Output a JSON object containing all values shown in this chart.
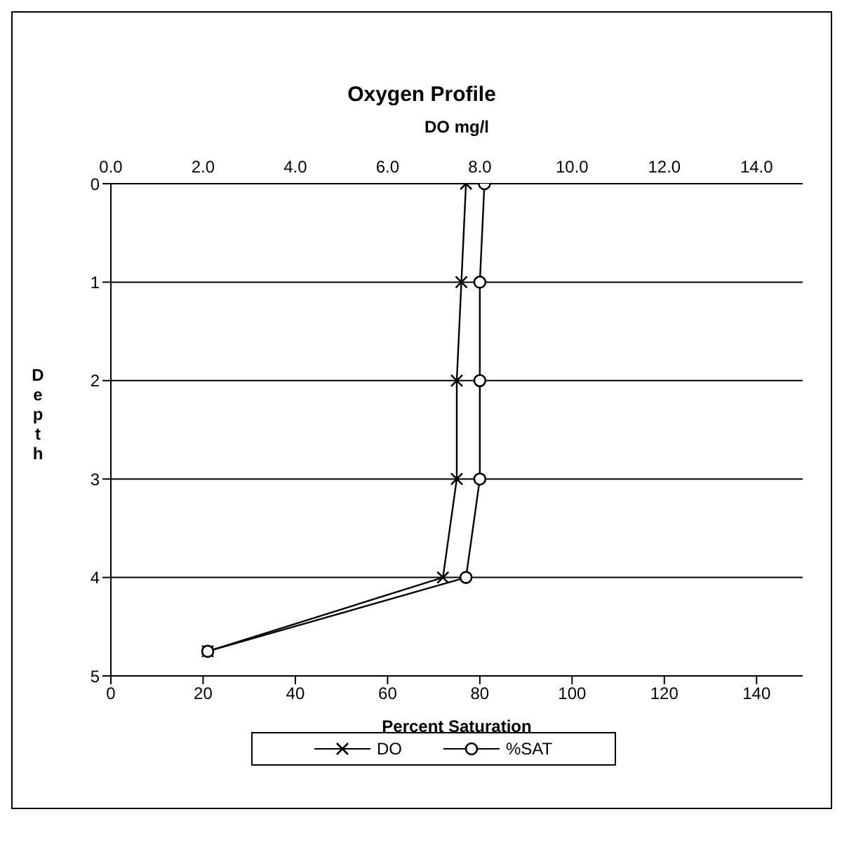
{
  "chart_data": {
    "type": "line",
    "title": "Oxygen Profile",
    "x2label": "DO mg/l",
    "xlabel": "Percent Saturation",
    "ylabel": "Depth",
    "orientation": "horizontal",
    "x": [
      0,
      1,
      2,
      3,
      4,
      4.75
    ],
    "series": [
      {
        "name": "DO",
        "color": "#000000",
        "values": [
          7.7,
          7.6,
          7.5,
          7.5,
          7.2,
          2.1
        ],
        "axis": "x2",
        "marker": "cross"
      },
      {
        "name": "%SAT",
        "color": "#000000",
        "values": [
          81,
          80,
          80,
          80,
          77,
          21
        ],
        "marker": "circle"
      }
    ],
    "xlim": [
      0,
      150
    ],
    "xticks": [
      0,
      20,
      40,
      60,
      80,
      100,
      120,
      140
    ],
    "x2lim": [
      0,
      15
    ],
    "x2ticks": [
      {
        "value": 0,
        "label": "0.0"
      },
      {
        "value": 2,
        "label": "2.0"
      },
      {
        "value": 4,
        "label": "4.0"
      },
      {
        "value": 6,
        "label": "6.0"
      },
      {
        "value": 8,
        "label": "8.0"
      },
      {
        "value": 10,
        "label": "10.0"
      },
      {
        "value": 12,
        "label": "12.0"
      },
      {
        "value": 14,
        "label": "14.0"
      }
    ],
    "ylim": [
      5,
      0
    ],
    "yticks": [
      0,
      1,
      2,
      3,
      4,
      5
    ],
    "grid": "y",
    "legend": "bottom",
    "line_style": "solid"
  }
}
